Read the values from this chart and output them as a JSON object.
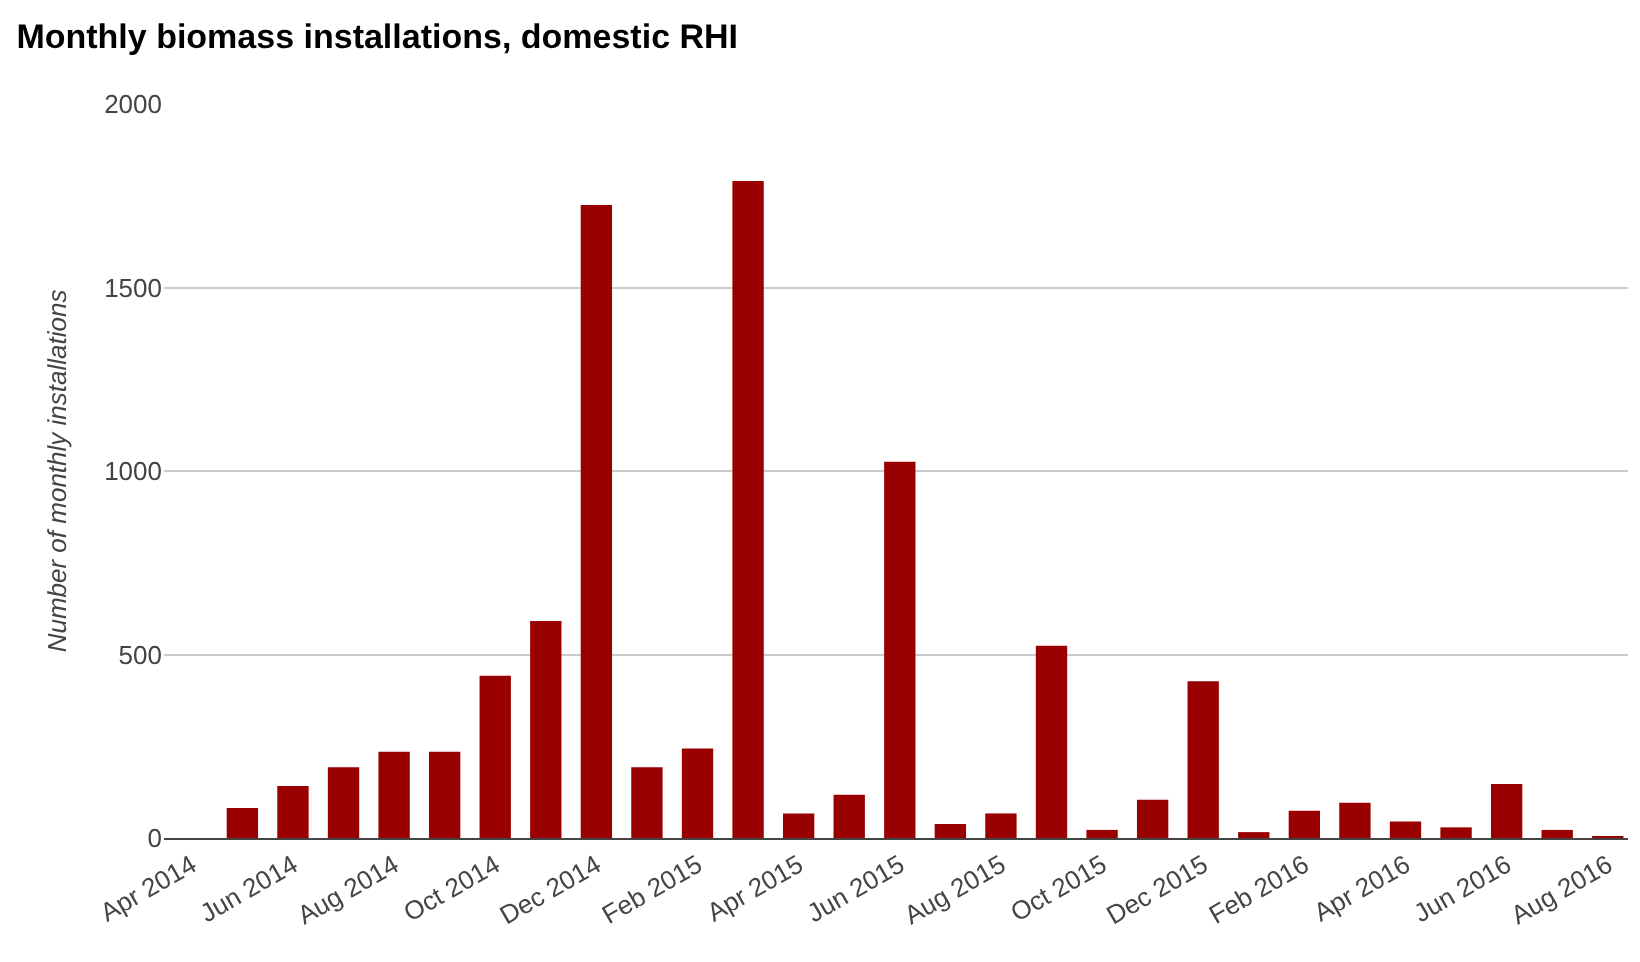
{
  "chart_data": {
    "type": "bar",
    "title": "Monthly biomass installations, domestic RHI",
    "ylabel": "Number of monthly installations",
    "categories": [
      "Apr 2014",
      null,
      "Jun 2014",
      null,
      "Aug 2014",
      null,
      "Oct 2014",
      null,
      "Dec 2014",
      null,
      "Feb 2015",
      null,
      "Apr 2015",
      null,
      "Jun 2015",
      null,
      "Aug 2015",
      null,
      "Oct 2015",
      null,
      "Dec 2015",
      null,
      "Feb 2016",
      null,
      "Apr 2016",
      null,
      "Jun 2016",
      null,
      "Aug 2016"
    ],
    "values": [
      0,
      82,
      142,
      193,
      235,
      235,
      442,
      591,
      1725,
      193,
      244,
      1790,
      67,
      118,
      1025,
      38,
      67,
      524,
      22,
      104,
      427,
      16,
      74,
      96,
      45,
      29,
      147,
      22,
      5
    ],
    "color": "#990000",
    "ylim": [
      0,
      2000
    ],
    "yticks": [
      0,
      500,
      1000,
      1500,
      2000
    ],
    "grid": "y"
  }
}
